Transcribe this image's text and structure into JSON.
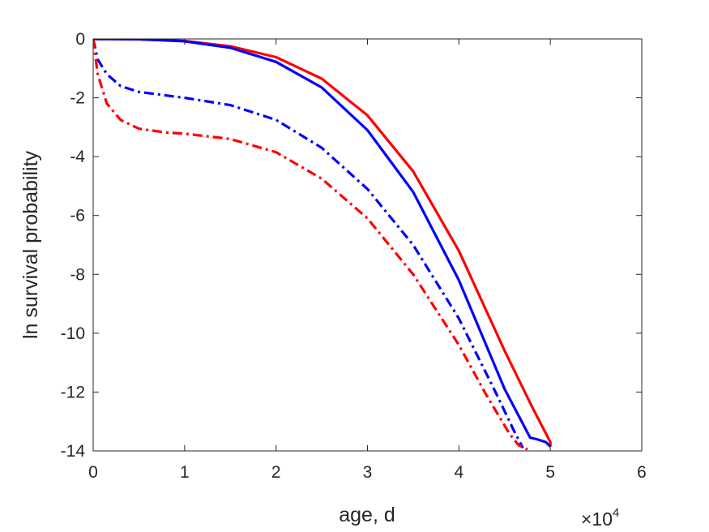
{
  "chart_data": {
    "type": "line",
    "xlabel": "age, d",
    "ylabel": "ln survival probability",
    "x_exponent_label": {
      "base": "×10",
      "power": "4"
    },
    "xlim": [
      0,
      60000
    ],
    "ylim": [
      -14,
      0
    ],
    "xticks": [
      0,
      10000,
      20000,
      30000,
      40000,
      50000,
      60000
    ],
    "xtick_labels": [
      "0",
      "1",
      "2",
      "3",
      "4",
      "5",
      "6"
    ],
    "yticks": [
      0,
      -2,
      -4,
      -6,
      -8,
      -10,
      -12,
      -14
    ],
    "ytick_labels": [
      "0",
      "-2",
      "-4",
      "-6",
      "-8",
      "-10",
      "-12",
      "-14"
    ],
    "grid": false,
    "legend": "none",
    "series": [
      {
        "color": "#ff0000",
        "style": "solid",
        "points": [
          [
            0,
            0
          ],
          [
            5000,
            -0.01
          ],
          [
            10000,
            -0.07
          ],
          [
            15000,
            -0.25
          ],
          [
            20000,
            -0.62
          ],
          [
            25000,
            -1.35
          ],
          [
            30000,
            -2.6
          ],
          [
            35000,
            -4.5
          ],
          [
            40000,
            -7.2
          ],
          [
            45000,
            -10.6
          ],
          [
            48000,
            -12.5
          ],
          [
            50000,
            -13.7
          ],
          [
            50000,
            -13.85
          ]
        ]
      },
      {
        "color": "#0000ff",
        "style": "solid",
        "points": [
          [
            0,
            0
          ],
          [
            5000,
            -0.01
          ],
          [
            10000,
            -0.08
          ],
          [
            15000,
            -0.3
          ],
          [
            20000,
            -0.78
          ],
          [
            25000,
            -1.65
          ],
          [
            30000,
            -3.1
          ],
          [
            35000,
            -5.2
          ],
          [
            40000,
            -8.2
          ],
          [
            45000,
            -11.9
          ],
          [
            47800,
            -13.55
          ],
          [
            48500,
            -13.6
          ],
          [
            49500,
            -13.7
          ],
          [
            50000,
            -13.85
          ]
        ]
      },
      {
        "color": "#0000ff",
        "style": "dashdot",
        "points": [
          [
            0,
            0
          ],
          [
            500,
            -0.7
          ],
          [
            1500,
            -1.2
          ],
          [
            3000,
            -1.6
          ],
          [
            5000,
            -1.8
          ],
          [
            8000,
            -1.92
          ],
          [
            10000,
            -2.0
          ],
          [
            15000,
            -2.25
          ],
          [
            20000,
            -2.75
          ],
          [
            25000,
            -3.7
          ],
          [
            30000,
            -5.1
          ],
          [
            35000,
            -7.0
          ],
          [
            40000,
            -9.5
          ],
          [
            44000,
            -12.0
          ],
          [
            46000,
            -13.3
          ],
          [
            47000,
            -13.9
          ]
        ]
      },
      {
        "color": "#ff0000",
        "style": "dashdot",
        "points": [
          [
            0,
            0
          ],
          [
            500,
            -1.2
          ],
          [
            1500,
            -2.2
          ],
          [
            3000,
            -2.75
          ],
          [
            5000,
            -3.05
          ],
          [
            8000,
            -3.18
          ],
          [
            10000,
            -3.22
          ],
          [
            15000,
            -3.4
          ],
          [
            20000,
            -3.85
          ],
          [
            25000,
            -4.75
          ],
          [
            30000,
            -6.1
          ],
          [
            35000,
            -8.0
          ],
          [
            40000,
            -10.4
          ],
          [
            43000,
            -12.1
          ],
          [
            45500,
            -13.4
          ],
          [
            46500,
            -13.8
          ],
          [
            47500,
            -13.95
          ]
        ]
      }
    ]
  }
}
